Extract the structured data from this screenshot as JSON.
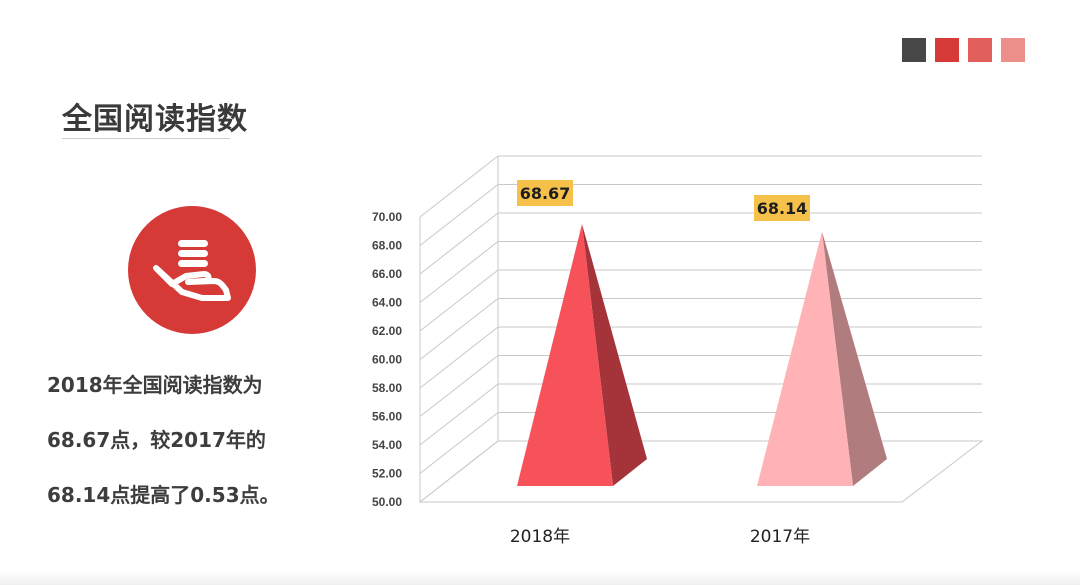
{
  "slide": {
    "title": "全国阅读指数",
    "swatch_colors": [
      "#474747",
      "#d63a37",
      "#e2605c",
      "#ec8f8b"
    ],
    "badge_color": "#d63a37",
    "icon": "hand-holding-coins-icon",
    "description": [
      "2018年全国阅读指数为",
      "68.67点，较2017年的",
      "68.14点提高了0.53点。"
    ]
  },
  "chart_data": {
    "type": "bar",
    "shape": "3d-pyramid",
    "categories": [
      "2018年",
      "2017年"
    ],
    "values": [
      68.67,
      68.14
    ],
    "data_labels": [
      "68.67",
      "68.14"
    ],
    "colors": [
      "#f7525a",
      "#ffb3b6"
    ],
    "side_colors": [
      "#a4333a",
      "#b07c7e"
    ],
    "label_bg": "#f5c14b",
    "y_ticks": [
      "50.00",
      "52.00",
      "54.00",
      "56.00",
      "58.00",
      "60.00",
      "62.00",
      "64.00",
      "66.00",
      "68.00",
      "70.00"
    ],
    "ylim": [
      50,
      70
    ],
    "grid": true,
    "title": "",
    "xlabel": "",
    "ylabel": ""
  }
}
